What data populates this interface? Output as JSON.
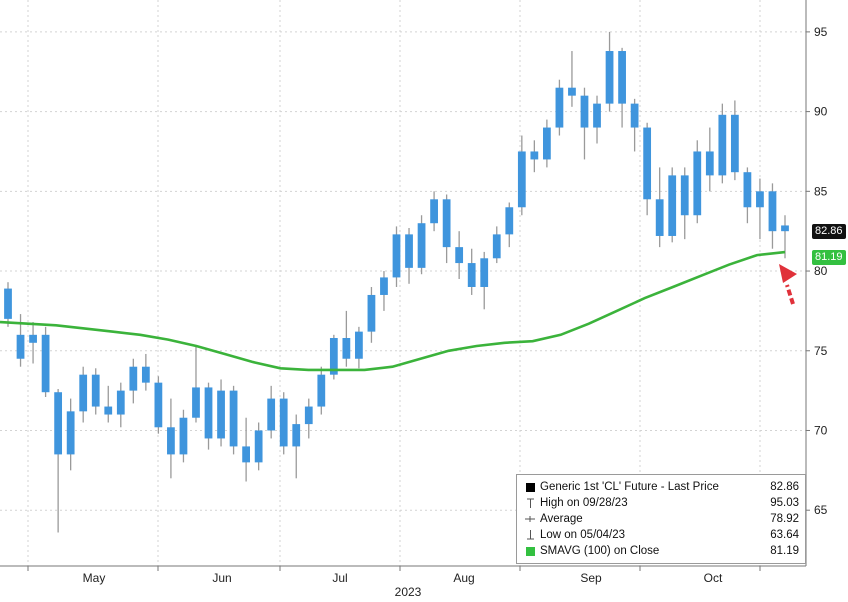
{
  "chart_data": {
    "type": "candlestick",
    "year_label": "2023",
    "month_labels": [
      "May",
      "Jun",
      "Jul",
      "Aug",
      "Sep",
      "Oct"
    ],
    "y_ticks": [
      65,
      70,
      75,
      80,
      85,
      90,
      95
    ],
    "ylim": [
      61.5,
      97
    ],
    "grid": true,
    "colors": {
      "up": "#3f95dd",
      "wick": "#9a9a9a",
      "sma": "#3bb33b",
      "arrow": "#e0313a"
    },
    "sma_100": [
      76.8,
      76.7,
      76.6,
      76.4,
      76.2,
      76.0,
      75.7,
      75.3,
      74.8,
      74.3,
      73.9,
      73.8,
      73.8,
      73.8,
      74.0,
      74.5,
      75.0,
      75.3,
      75.5,
      75.6,
      76.0,
      76.7,
      77.5,
      78.3,
      79.0,
      79.7,
      80.4,
      81.0,
      81.19
    ],
    "candles": [
      [
        78.9,
        79.3,
        76.5,
        77.0
      ],
      [
        76.0,
        77.3,
        74.0,
        74.5
      ],
      [
        75.5,
        76.8,
        74.2,
        76.0
      ],
      [
        76.0,
        76.5,
        72.1,
        72.4
      ],
      [
        72.4,
        72.6,
        63.6,
        68.5
      ],
      [
        68.5,
        72.0,
        67.5,
        71.2
      ],
      [
        71.2,
        74.0,
        70.5,
        73.5
      ],
      [
        73.5,
        73.9,
        71.0,
        71.5
      ],
      [
        71.5,
        72.8,
        70.5,
        71.0
      ],
      [
        71.0,
        73.0,
        70.2,
        72.5
      ],
      [
        72.5,
        74.5,
        71.7,
        74.0
      ],
      [
        74.0,
        74.8,
        72.5,
        73.0
      ],
      [
        73.0,
        73.4,
        69.8,
        70.2
      ],
      [
        70.2,
        72.0,
        67.0,
        68.5
      ],
      [
        68.5,
        71.3,
        68.0,
        70.8
      ],
      [
        70.8,
        75.3,
        70.5,
        72.7
      ],
      [
        72.7,
        73.0,
        68.8,
        69.5
      ],
      [
        69.5,
        73.2,
        69.0,
        72.5
      ],
      [
        72.5,
        72.8,
        68.5,
        69.0
      ],
      [
        69.0,
        70.8,
        66.8,
        68.0
      ],
      [
        68.0,
        70.5,
        67.5,
        70.0
      ],
      [
        70.0,
        72.8,
        69.5,
        72.0
      ],
      [
        72.0,
        72.4,
        68.5,
        69.0
      ],
      [
        69.0,
        71.0,
        67.0,
        70.4
      ],
      [
        70.4,
        72.0,
        69.5,
        71.5
      ],
      [
        71.5,
        74.0,
        71.0,
        73.5
      ],
      [
        73.5,
        76.0,
        73.2,
        75.8
      ],
      [
        75.8,
        77.5,
        74.0,
        74.5
      ],
      [
        74.5,
        76.5,
        73.9,
        76.2
      ],
      [
        76.2,
        79.0,
        75.5,
        78.5
      ],
      [
        78.5,
        80.0,
        77.5,
        79.6
      ],
      [
        79.6,
        82.8,
        79.0,
        82.3
      ],
      [
        82.3,
        82.7,
        79.2,
        80.2
      ],
      [
        80.2,
        83.5,
        79.8,
        83.0
      ],
      [
        83.0,
        85.0,
        82.5,
        84.5
      ],
      [
        84.5,
        84.8,
        80.5,
        81.5
      ],
      [
        81.5,
        82.5,
        79.5,
        80.5
      ],
      [
        80.5,
        81.4,
        78.5,
        79.0
      ],
      [
        79.0,
        81.2,
        77.6,
        80.8
      ],
      [
        80.8,
        82.8,
        80.5,
        82.3
      ],
      [
        82.3,
        84.3,
        81.5,
        84.0
      ],
      [
        84.0,
        88.5,
        83.5,
        87.5
      ],
      [
        87.5,
        88.2,
        86.2,
        87.0
      ],
      [
        87.0,
        89.5,
        86.5,
        89.0
      ],
      [
        89.0,
        92.0,
        88.5,
        91.5
      ],
      [
        91.5,
        93.8,
        90.3,
        91.0
      ],
      [
        91.0,
        91.5,
        87.0,
        89.0
      ],
      [
        89.0,
        91.0,
        88.0,
        90.5
      ],
      [
        90.5,
        95.0,
        90.0,
        93.8
      ],
      [
        93.8,
        94.0,
        89.0,
        90.5
      ],
      [
        90.5,
        90.8,
        87.5,
        89.0
      ],
      [
        89.0,
        89.3,
        83.5,
        84.5
      ],
      [
        84.5,
        86.5,
        81.5,
        82.2
      ],
      [
        82.2,
        86.5,
        81.8,
        86.0
      ],
      [
        86.0,
        86.5,
        82.0,
        83.5
      ],
      [
        83.5,
        88.2,
        83.0,
        87.5
      ],
      [
        87.5,
        89.0,
        85.0,
        86.0
      ],
      [
        86.0,
        90.5,
        85.5,
        89.8
      ],
      [
        89.8,
        90.7,
        85.7,
        86.2
      ],
      [
        86.2,
        86.5,
        83.0,
        84.0
      ],
      [
        84.0,
        85.8,
        82.0,
        85.0
      ],
      [
        85.0,
        85.5,
        81.4,
        82.5
      ],
      [
        82.5,
        83.5,
        80.8,
        82.86
      ]
    ]
  },
  "last_price_tag": "82.86",
  "sma_tag": "81.19",
  "legend": [
    {
      "icon": "black-square",
      "label": "Generic 1st 'CL' Future - Last Price",
      "value": "82.86"
    },
    {
      "icon": "high-marker",
      "label": "High on 09/28/23",
      "value": "95.03"
    },
    {
      "icon": "average-marker",
      "label": "Average",
      "value": "78.92"
    },
    {
      "icon": "low-marker",
      "label": "Low on 05/04/23",
      "value": "63.64"
    },
    {
      "icon": "green-square",
      "label": "SMAVG (100)  on Close",
      "value": "81.19"
    }
  ]
}
